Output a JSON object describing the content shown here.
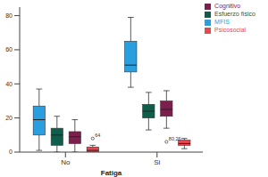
{
  "chart_data": {
    "type": "boxplot",
    "x_label": "Fatiga",
    "categories": [
      "No",
      "Si"
    ],
    "ylim": [
      0,
      85
    ],
    "yticks": [
      0,
      20,
      40,
      60,
      80
    ],
    "grid": false,
    "legend": "upper right",
    "series": [
      {
        "name": "MFIS",
        "color": "#2a9fdf",
        "values": [
          {
            "min": 1,
            "q1": 10,
            "median": 19,
            "q3": 27,
            "max": 37,
            "outliers": []
          },
          {
            "min": 38,
            "q1": 47,
            "median": 51,
            "q3": 65,
            "max": 79,
            "outliers": []
          }
        ]
      },
      {
        "name": "Esfuerzo físico",
        "color": "#0f5e4c",
        "values": [
          {
            "min": 0,
            "q1": 4,
            "median": 10,
            "q3": 14,
            "max": 21,
            "outliers": []
          },
          {
            "min": 13,
            "q1": 20,
            "median": 24,
            "q3": 28,
            "max": 35,
            "outliers": []
          }
        ]
      },
      {
        "name": "Cognitivo",
        "color": "#7d1f4d",
        "values": [
          {
            "min": 0,
            "q1": 5,
            "median": 9,
            "q3": 12,
            "max": 19,
            "outliers": []
          },
          {
            "min": 14,
            "q1": 21,
            "median": 25,
            "q3": 30,
            "max": 36,
            "outliers": [
              {
                "value": 6,
                "label": "80,26"
              }
            ]
          }
        ]
      },
      {
        "name": "Psicosocial",
        "color": "#e5484d",
        "values": [
          {
            "min": 0,
            "q1": 0,
            "median": 1,
            "q3": 3,
            "max": 4,
            "outliers": [
              {
                "value": 8,
                "label": "64"
              }
            ]
          },
          {
            "min": 2,
            "q1": 4,
            "median": 5,
            "q3": 7,
            "max": 8,
            "outliers": []
          }
        ]
      }
    ]
  }
}
